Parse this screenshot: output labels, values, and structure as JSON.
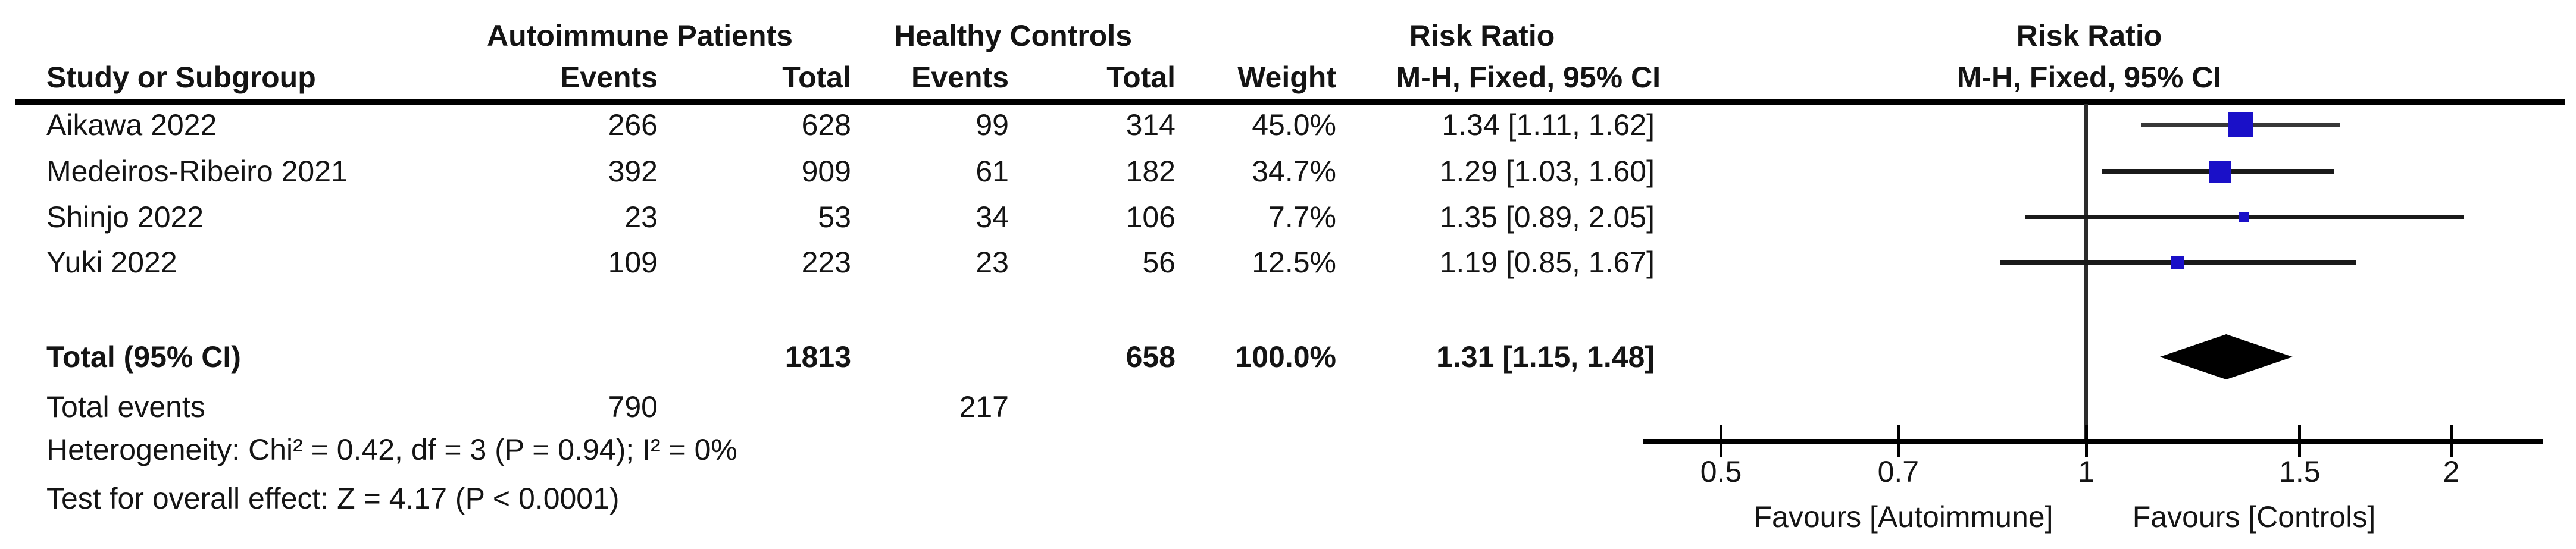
{
  "header": {
    "group_experimental": "Autoimmune Patients",
    "group_control": "Healthy Controls",
    "risk_ratio_table": "Risk Ratio",
    "risk_ratio_plot": "Risk Ratio",
    "study": "Study or Subgroup",
    "events_experimental": "Events",
    "total_experimental": "Total",
    "events_control": "Events",
    "total_control": "Total",
    "weight": "Weight",
    "mh_table": "M-H, Fixed, 95% CI",
    "mh_plot": "M-H, Fixed, 95% CI"
  },
  "chart_data": {
    "type": "forest",
    "effect_measure": "Risk Ratio",
    "method": "M-H, Fixed, 95% CI",
    "x_scale": "log",
    "xlim": [
      0.43,
      2.38
    ],
    "x_ticks": [
      0.5,
      0.7,
      1,
      1.5,
      2
    ],
    "x_tick_labels": [
      "0.5",
      "0.7",
      "1",
      "1.5",
      "2"
    ],
    "null_value": 1,
    "marker_color": "#1a10c8",
    "line_color": "#1a1a1a",
    "diamond_color": "#000000",
    "favours_left": "Favours [Autoimmune]",
    "favours_right": "Favours [Controls]",
    "studies": [
      {
        "name": "Aikawa 2022",
        "events_exp": "266",
        "total_exp": "628",
        "events_ctrl": "99",
        "total_ctrl": "314",
        "weight": "45.0%",
        "weight_value": 45.0,
        "rr_text": "1.34 [1.11, 1.62]",
        "rr": 1.34,
        "ci_low": 1.11,
        "ci_high": 1.62
      },
      {
        "name": "Medeiros-Ribeiro 2021",
        "events_exp": "392",
        "total_exp": "909",
        "events_ctrl": "61",
        "total_ctrl": "182",
        "weight": "34.7%",
        "weight_value": 34.7,
        "rr_text": "1.29 [1.03, 1.60]",
        "rr": 1.29,
        "ci_low": 1.03,
        "ci_high": 1.6
      },
      {
        "name": "Shinjo 2022",
        "events_exp": "23",
        "total_exp": "53",
        "events_ctrl": "34",
        "total_ctrl": "106",
        "weight": "7.7%",
        "weight_value": 7.7,
        "rr_text": "1.35 [0.89, 2.05]",
        "rr": 1.35,
        "ci_low": 0.89,
        "ci_high": 2.05
      },
      {
        "name": "Yuki 2022",
        "events_exp": "109",
        "total_exp": "223",
        "events_ctrl": "23",
        "total_ctrl": "56",
        "weight": "12.5%",
        "weight_value": 12.5,
        "rr_text": "1.19 [0.85, 1.67]",
        "rr": 1.19,
        "ci_low": 0.85,
        "ci_high": 1.67
      }
    ],
    "total": {
      "label": "Total (95% CI)",
      "total_exp": "1813",
      "total_ctrl": "658",
      "weight": "100.0%",
      "rr_text": "1.31 [1.15, 1.48]",
      "rr": 1.31,
      "ci_low": 1.15,
      "ci_high": 1.48
    }
  },
  "stats": {
    "total_events_label": "Total events",
    "total_events_experimental": "790",
    "total_events_control": "217",
    "heterogeneity": "Heterogeneity: Chi² = 0.42, df = 3 (P = 0.94); I² = 0%",
    "overall_effect": "Test for overall effect: Z = 4.17 (P < 0.0001)"
  }
}
